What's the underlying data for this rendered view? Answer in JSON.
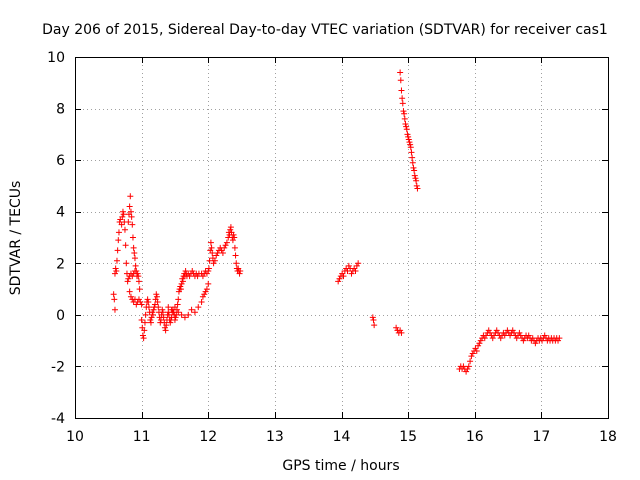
{
  "chart_data": {
    "type": "scatter",
    "title": "Day 206 of 2015, Sidereal Day-to-day VTEC variation (SDTVAR) for receiver cas1",
    "xlabel": "GPS time / hours",
    "ylabel": "SDTVAR / TECUs",
    "xlim": [
      10,
      18
    ],
    "ylim": [
      -4,
      10
    ],
    "xticks": [
      "10",
      "11",
      "12",
      "13",
      "14",
      "15",
      "16",
      "17",
      "18"
    ],
    "yticks": [
      "-4",
      "-2",
      "0",
      "2",
      "4",
      "6",
      "8",
      "10"
    ],
    "grid": true,
    "marker": "+",
    "marker_color": "#ff0000",
    "series": [
      {
        "name": "SDTVAR",
        "points": [
          [
            10.58,
            0.8
          ],
          [
            10.59,
            0.6
          ],
          [
            10.6,
            0.2
          ],
          [
            10.6,
            1.6
          ],
          [
            10.61,
            1.8
          ],
          [
            10.62,
            1.7
          ],
          [
            10.63,
            2.1
          ],
          [
            10.64,
            2.5
          ],
          [
            10.65,
            2.9
          ],
          [
            10.66,
            3.2
          ],
          [
            10.67,
            3.6
          ],
          [
            10.68,
            3.7
          ],
          [
            10.7,
            3.5
          ],
          [
            10.71,
            3.8
          ],
          [
            10.72,
            4.0
          ],
          [
            10.73,
            3.9
          ],
          [
            10.74,
            3.6
          ],
          [
            10.75,
            3.3
          ],
          [
            10.76,
            2.7
          ],
          [
            10.77,
            2.0
          ],
          [
            10.78,
            1.6
          ],
          [
            10.79,
            1.3
          ],
          [
            10.8,
            3.6
          ],
          [
            10.81,
            3.9
          ],
          [
            10.82,
            4.2
          ],
          [
            10.83,
            4.6
          ],
          [
            10.84,
            4.0
          ],
          [
            10.85,
            3.8
          ],
          [
            10.86,
            3.5
          ],
          [
            10.87,
            3.0
          ],
          [
            10.88,
            2.6
          ],
          [
            10.89,
            2.4
          ],
          [
            10.9,
            2.2
          ],
          [
            10.91,
            1.9
          ],
          [
            10.92,
            1.7
          ],
          [
            10.93,
            1.5
          ],
          [
            10.94,
            1.6
          ],
          [
            10.95,
            1.5
          ],
          [
            10.96,
            1.3
          ],
          [
            10.97,
            1.0
          ],
          [
            10.8,
            1.4
          ],
          [
            10.82,
            1.5
          ],
          [
            10.84,
            1.6
          ],
          [
            10.86,
            1.5
          ],
          [
            10.88,
            1.6
          ],
          [
            10.9,
            1.7
          ],
          [
            10.82,
            0.9
          ],
          [
            10.84,
            0.7
          ],
          [
            10.86,
            0.6
          ],
          [
            10.88,
            0.5
          ],
          [
            10.9,
            0.6
          ],
          [
            10.92,
            0.4
          ],
          [
            10.94,
            0.5
          ],
          [
            10.96,
            0.6
          ],
          [
            10.98,
            0.5
          ],
          [
            11.0,
            0.4
          ],
          [
            11.0,
            -0.2
          ],
          [
            11.01,
            -0.5
          ],
          [
            11.02,
            -0.8
          ],
          [
            11.03,
            -0.9
          ],
          [
            11.04,
            -0.6
          ],
          [
            11.05,
            -0.3
          ],
          [
            11.06,
            0.0
          ],
          [
            11.07,
            0.3
          ],
          [
            11.08,
            0.5
          ],
          [
            11.09,
            0.6
          ],
          [
            11.1,
            0.5
          ],
          [
            11.11,
            0.3
          ],
          [
            11.12,
            0.1
          ],
          [
            11.13,
            -0.2
          ],
          [
            11.14,
            -0.3
          ],
          [
            11.15,
            -0.1
          ],
          [
            11.16,
            0.1
          ],
          [
            11.17,
            0.0
          ],
          [
            11.18,
            0.2
          ],
          [
            11.19,
            0.3
          ],
          [
            11.2,
            0.4
          ],
          [
            11.21,
            0.6
          ],
          [
            11.22,
            0.8
          ],
          [
            11.23,
            0.7
          ],
          [
            11.24,
            0.5
          ],
          [
            11.25,
            0.3
          ],
          [
            11.26,
            0.1
          ],
          [
            11.27,
            -0.1
          ],
          [
            11.28,
            -0.3
          ],
          [
            11.29,
            -0.2
          ],
          [
            11.3,
            0.0
          ],
          [
            11.31,
            0.2
          ],
          [
            11.32,
            0.1
          ],
          [
            11.33,
            -0.1
          ],
          [
            11.34,
            -0.3
          ],
          [
            11.35,
            -0.5
          ],
          [
            11.36,
            -0.6
          ],
          [
            11.37,
            -0.4
          ],
          [
            11.38,
            -0.2
          ],
          [
            11.39,
            0.0
          ],
          [
            11.4,
            0.1
          ],
          [
            11.41,
            0.0
          ],
          [
            11.42,
            -0.2
          ],
          [
            11.43,
            -0.3
          ],
          [
            11.44,
            -0.2
          ],
          [
            11.45,
            -0.1
          ],
          [
            11.46,
            0.1
          ],
          [
            11.47,
            0.2
          ],
          [
            11.48,
            0.1
          ],
          [
            11.49,
            0.0
          ],
          [
            11.5,
            -0.2
          ],
          [
            11.51,
            -0.1
          ],
          [
            11.52,
            0.0
          ],
          [
            11.53,
            0.2
          ],
          [
            11.54,
            0.4
          ],
          [
            11.55,
            0.6
          ],
          [
            11.56,
            0.9
          ],
          [
            11.57,
            1.0
          ],
          [
            11.58,
            1.1
          ],
          [
            11.59,
            1.0
          ],
          [
            11.6,
            1.2
          ],
          [
            11.61,
            1.4
          ],
          [
            11.62,
            1.3
          ],
          [
            11.63,
            1.5
          ],
          [
            11.64,
            1.6
          ],
          [
            11.65,
            1.5
          ],
          [
            11.66,
            1.7
          ],
          [
            11.67,
            1.6
          ],
          [
            11.68,
            1.5
          ],
          [
            11.7,
            1.6
          ],
          [
            11.72,
            1.5
          ],
          [
            11.74,
            1.6
          ],
          [
            11.76,
            1.7
          ],
          [
            11.78,
            1.6
          ],
          [
            11.8,
            1.5
          ],
          [
            11.82,
            1.6
          ],
          [
            11.84,
            1.5
          ],
          [
            11.86,
            1.6
          ],
          [
            11.9,
            1.6
          ],
          [
            11.92,
            1.5
          ],
          [
            11.94,
            1.6
          ],
          [
            11.96,
            1.7
          ],
          [
            11.98,
            1.6
          ],
          [
            12.0,
            1.7
          ],
          [
            11.4,
            0.3
          ],
          [
            11.45,
            0.2
          ],
          [
            11.5,
            0.3
          ],
          [
            11.55,
            0.1
          ],
          [
            11.6,
            0.0
          ],
          [
            11.65,
            -0.1
          ],
          [
            11.7,
            0.0
          ],
          [
            11.75,
            0.2
          ],
          [
            11.8,
            0.1
          ],
          [
            11.85,
            0.3
          ],
          [
            11.9,
            0.5
          ],
          [
            11.92,
            0.7
          ],
          [
            11.94,
            0.8
          ],
          [
            11.96,
            0.9
          ],
          [
            11.98,
            1.0
          ],
          [
            12.0,
            1.2
          ],
          [
            12.01,
            1.8
          ],
          [
            12.02,
            2.1
          ],
          [
            12.03,
            2.5
          ],
          [
            12.04,
            2.8
          ],
          [
            12.05,
            2.6
          ],
          [
            12.06,
            2.4
          ],
          [
            12.07,
            2.2
          ],
          [
            12.08,
            2.0
          ],
          [
            12.1,
            2.1
          ],
          [
            12.12,
            2.3
          ],
          [
            12.14,
            2.4
          ],
          [
            12.16,
            2.5
          ],
          [
            12.18,
            2.6
          ],
          [
            12.2,
            2.5
          ],
          [
            12.22,
            2.4
          ],
          [
            12.24,
            2.6
          ],
          [
            12.26,
            2.7
          ],
          [
            12.28,
            2.8
          ],
          [
            12.3,
            3.0
          ],
          [
            12.31,
            3.2
          ],
          [
            12.32,
            3.1
          ],
          [
            12.33,
            3.3
          ],
          [
            12.34,
            3.4
          ],
          [
            12.35,
            3.2
          ],
          [
            12.36,
            3.0
          ],
          [
            12.37,
            2.9
          ],
          [
            12.38,
            3.1
          ],
          [
            12.39,
            3.0
          ],
          [
            12.4,
            2.6
          ],
          [
            12.41,
            2.3
          ],
          [
            12.42,
            2.0
          ],
          [
            12.43,
            1.8
          ],
          [
            12.44,
            1.7
          ],
          [
            12.45,
            1.8
          ],
          [
            12.46,
            1.7
          ],
          [
            12.47,
            1.6
          ],
          [
            12.48,
            1.7
          ],
          [
            13.95,
            1.3
          ],
          [
            13.97,
            1.4
          ],
          [
            13.99,
            1.5
          ],
          [
            14.01,
            1.6
          ],
          [
            14.03,
            1.5
          ],
          [
            14.05,
            1.7
          ],
          [
            14.07,
            1.8
          ],
          [
            14.09,
            1.7
          ],
          [
            14.11,
            1.9
          ],
          [
            14.13,
            1.8
          ],
          [
            14.15,
            1.6
          ],
          [
            14.17,
            1.7
          ],
          [
            14.19,
            1.8
          ],
          [
            14.21,
            1.7
          ],
          [
            14.23,
            1.9
          ],
          [
            14.25,
            2.0
          ],
          [
            14.47,
            -0.1
          ],
          [
            14.48,
            -0.2
          ],
          [
            14.49,
            -0.4
          ],
          [
            14.82,
            -0.5
          ],
          [
            14.84,
            -0.6
          ],
          [
            14.86,
            -0.7
          ],
          [
            14.88,
            -0.6
          ],
          [
            14.9,
            -0.7
          ],
          [
            14.88,
            9.4
          ],
          [
            14.89,
            9.1
          ],
          [
            14.9,
            8.7
          ],
          [
            14.91,
            8.4
          ],
          [
            14.92,
            8.2
          ],
          [
            14.93,
            7.9
          ],
          [
            14.94,
            7.8
          ],
          [
            14.95,
            7.6
          ],
          [
            14.96,
            7.4
          ],
          [
            14.97,
            7.3
          ],
          [
            14.98,
            7.2
          ],
          [
            14.99,
            7.0
          ],
          [
            15.0,
            6.9
          ],
          [
            15.01,
            6.8
          ],
          [
            15.02,
            6.7
          ],
          [
            15.03,
            6.6
          ],
          [
            15.04,
            6.5
          ],
          [
            15.05,
            6.3
          ],
          [
            15.06,
            6.1
          ],
          [
            15.07,
            5.9
          ],
          [
            15.08,
            5.7
          ],
          [
            15.09,
            5.6
          ],
          [
            15.1,
            5.4
          ],
          [
            15.11,
            5.3
          ],
          [
            15.12,
            5.2
          ],
          [
            15.13,
            5.0
          ],
          [
            15.14,
            4.9
          ],
          [
            15.77,
            -2.1
          ],
          [
            15.79,
            -2.0
          ],
          [
            15.81,
            -2.1
          ],
          [
            15.83,
            -2.0
          ],
          [
            15.85,
            -2.1
          ],
          [
            15.87,
            -2.2
          ],
          [
            15.89,
            -2.1
          ],
          [
            15.91,
            -2.0
          ],
          [
            15.93,
            -1.8
          ],
          [
            15.95,
            -1.6
          ],
          [
            15.97,
            -1.5
          ],
          [
            15.99,
            -1.4
          ],
          [
            16.01,
            -1.3
          ],
          [
            16.03,
            -1.4
          ],
          [
            16.05,
            -1.2
          ],
          [
            16.07,
            -1.1
          ],
          [
            16.09,
            -1.0
          ],
          [
            16.11,
            -0.9
          ],
          [
            16.13,
            -0.8
          ],
          [
            16.15,
            -0.9
          ],
          [
            16.17,
            -0.8
          ],
          [
            16.19,
            -0.7
          ],
          [
            16.21,
            -0.6
          ],
          [
            16.23,
            -0.7
          ],
          [
            16.25,
            -0.8
          ],
          [
            16.27,
            -0.9
          ],
          [
            16.29,
            -0.8
          ],
          [
            16.31,
            -0.7
          ],
          [
            16.33,
            -0.6
          ],
          [
            16.35,
            -0.7
          ],
          [
            16.37,
            -0.8
          ],
          [
            16.39,
            -0.9
          ],
          [
            16.41,
            -0.8
          ],
          [
            16.43,
            -0.7
          ],
          [
            16.45,
            -0.8
          ],
          [
            16.47,
            -0.7
          ],
          [
            16.49,
            -0.6
          ],
          [
            16.51,
            -0.7
          ],
          [
            16.53,
            -0.8
          ],
          [
            16.55,
            -0.7
          ],
          [
            16.57,
            -0.6
          ],
          [
            16.59,
            -0.7
          ],
          [
            16.61,
            -0.8
          ],
          [
            16.63,
            -0.9
          ],
          [
            16.65,
            -0.8
          ],
          [
            16.67,
            -0.7
          ],
          [
            16.69,
            -0.8
          ],
          [
            16.71,
            -0.9
          ],
          [
            16.73,
            -1.0
          ],
          [
            16.75,
            -0.9
          ],
          [
            16.77,
            -0.8
          ],
          [
            16.79,
            -0.9
          ],
          [
            16.81,
            -0.8
          ],
          [
            16.83,
            -0.9
          ],
          [
            16.85,
            -1.0
          ],
          [
            16.87,
            -0.9
          ],
          [
            16.89,
            -1.0
          ],
          [
            16.91,
            -1.1
          ],
          [
            16.93,
            -1.0
          ],
          [
            16.95,
            -0.9
          ],
          [
            16.97,
            -1.0
          ],
          [
            16.99,
            -0.9
          ],
          [
            17.01,
            -1.0
          ],
          [
            17.03,
            -0.9
          ],
          [
            17.05,
            -0.8
          ],
          [
            17.07,
            -0.9
          ],
          [
            17.09,
            -1.0
          ],
          [
            17.11,
            -0.9
          ],
          [
            17.13,
            -1.0
          ],
          [
            17.15,
            -0.9
          ],
          [
            17.17,
            -1.0
          ],
          [
            17.19,
            -0.9
          ],
          [
            17.21,
            -1.0
          ],
          [
            17.23,
            -0.9
          ],
          [
            17.25,
            -1.0
          ],
          [
            17.27,
            -0.9
          ]
        ]
      }
    ]
  }
}
